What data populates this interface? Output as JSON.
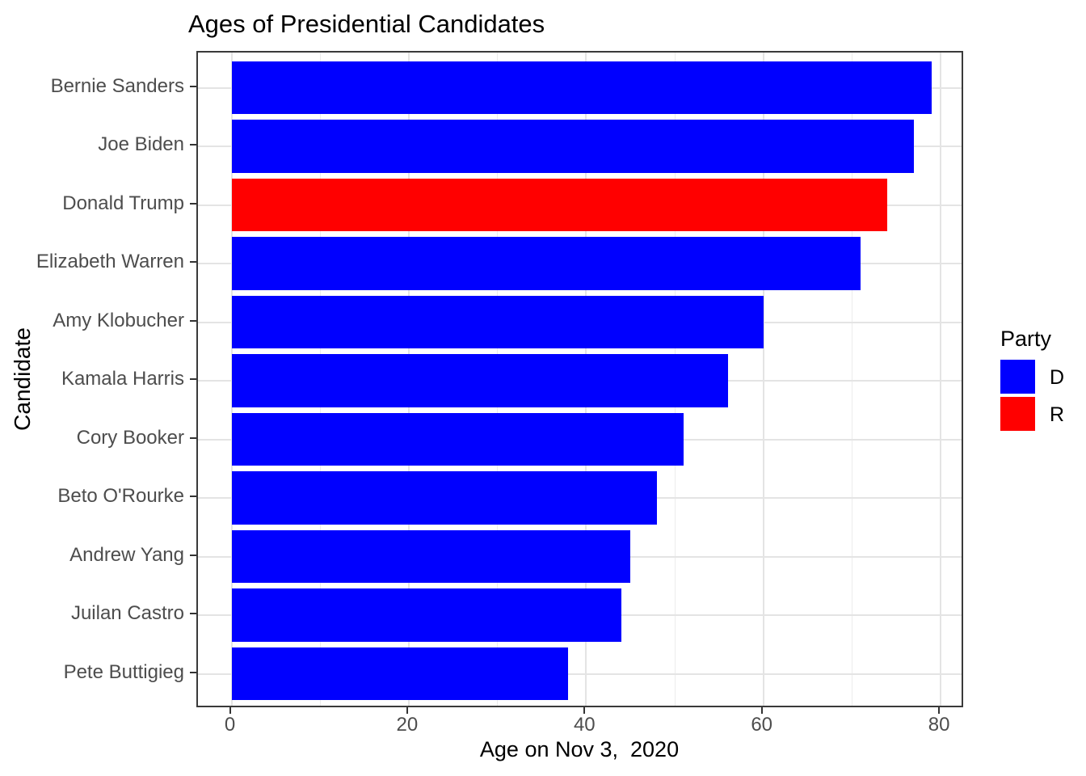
{
  "title": "Ages of Presidential Candidates",
  "chart_data": {
    "type": "bar",
    "orientation": "horizontal",
    "title": "Ages of Presidential Candidates",
    "xlabel": "Age on Nov 3,  2020",
    "ylabel": "Candidate",
    "categories": [
      "Bernie Sanders",
      "Joe Biden",
      "Donald Trump",
      "Elizabeth Warren",
      "Amy Klobucher",
      "Kamala Harris",
      "Cory Booker",
      "Beto O'Rourke",
      "Andrew Yang",
      "Juilan Castro",
      "Pete Buttigieg"
    ],
    "values": [
      79,
      77,
      74,
      71,
      60,
      56,
      51,
      48,
      45,
      44,
      38
    ],
    "party": [
      "D",
      "D",
      "R",
      "D",
      "D",
      "D",
      "D",
      "D",
      "D",
      "D",
      "D"
    ],
    "party_colors": {
      "D": "#0000FF",
      "R": "#FF0000"
    },
    "x_ticks": [
      0,
      20,
      40,
      60,
      80
    ],
    "x_minor_ticks": [
      10,
      30,
      50,
      70
    ],
    "xlim": [
      -3.8,
      82.8
    ],
    "grid": true,
    "legend": {
      "title": "Party",
      "position": "right",
      "entries": [
        {
          "label": "D",
          "color": "#0000FF"
        },
        {
          "label": "R",
          "color": "#FF0000"
        }
      ]
    }
  }
}
